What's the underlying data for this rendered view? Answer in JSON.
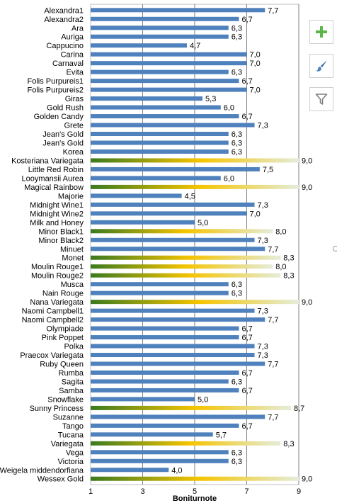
{
  "chart_data": {
    "type": "bar",
    "orientation": "horizontal",
    "xlabel": "Boniturnote",
    "xlim": [
      1,
      9
    ],
    "xticks": [
      "1",
      "3",
      "5",
      "7",
      "9"
    ],
    "grid": true,
    "colors": {
      "bar": "#4f81bd",
      "gradient_start": "#3a7a1e",
      "gradient_mid": "#f5c400",
      "gradient_end": "#e4edd9",
      "grid": "#7f7f7f"
    },
    "categories": [
      "Alexandra1",
      "Alexandra2",
      "Ara",
      "Auriga",
      "Cappucino",
      "Carina",
      "Carnaval",
      "Evita",
      "Folis Purpureis1",
      "Folis Purpureis2",
      "Giras",
      "Gold Rush",
      "Golden Candy",
      "Grete",
      "Jean's Gold",
      "Jean's Gold",
      "Korea",
      "Kosteriana Variegata",
      "Little Red Robin",
      "Looymansii Aurea",
      "Magical Rainbow",
      "Majorie",
      "Midnight Wine1",
      "Midnight Wine2",
      "Milk and Honey",
      "Minor Black1",
      "Minor Black2",
      "Minuet",
      "Monet",
      "Moulin Rouge1",
      "Moulin Rouge2",
      "Musca",
      "Nain Rouge",
      "Nana Variegata",
      "Naomi Campbell1",
      "Naomi Campbell2",
      "Olympiade",
      "Pink Poppet",
      "Polka",
      "Praecox Variegata",
      "Ruby Queen",
      "Rumba",
      "Sagita",
      "Samba",
      "Snowflake",
      "Sunny Princess",
      "Suzanne",
      "Tango",
      "Tucana",
      "Variegata",
      "Vega",
      "Victoria",
      "Weigela middendorfiana",
      "Wessex Gold"
    ],
    "values": [
      7.7,
      6.7,
      6.3,
      6.3,
      4.7,
      7.0,
      7.0,
      6.3,
      6.7,
      7.0,
      5.3,
      6.0,
      6.7,
      7.3,
      6.3,
      6.3,
      6.3,
      9.0,
      7.5,
      6.0,
      9.0,
      4.5,
      7.3,
      7.0,
      5.0,
      8.0,
      7.3,
      7.7,
      8.3,
      8.0,
      8.3,
      6.3,
      6.3,
      9.0,
      7.3,
      7.7,
      6.7,
      6.7,
      7.3,
      7.3,
      7.7,
      6.7,
      6.3,
      6.7,
      5.0,
      8.7,
      7.7,
      6.7,
      5.7,
      8.3,
      6.3,
      6.3,
      4.0,
      9.0
    ],
    "value_labels": [
      "7,7",
      "6,7",
      "6,3",
      "6,3",
      "4,7",
      "7,0",
      "7,0",
      "6,3",
      "6,7",
      "7,0",
      "5,3",
      "6,0",
      "6,7",
      "7,3",
      "6,3",
      "6,3",
      "6,3",
      "9,0",
      "7,5",
      "6,0",
      "9,0",
      "4,5",
      "7,3",
      "7,0",
      "5,0",
      "8,0",
      "7,3",
      "7,7",
      "8,3",
      "8,0",
      "8,3",
      "6,3",
      "6,3",
      "9,0",
      "7,3",
      "7,7",
      "6,7",
      "6,7",
      "7,3",
      "7,3",
      "7,7",
      "6,7",
      "6,3",
      "6,7",
      "5,0",
      "8,7",
      "7,7",
      "6,7",
      "5,7",
      "8,3",
      "6,3",
      "6,3",
      "4,0",
      "9,0"
    ],
    "highlighted": [
      "Kosteriana Variegata",
      "Magical Rainbow",
      "Minor Black1",
      "Monet",
      "Moulin Rouge1",
      "Moulin Rouge2",
      "Nana Variegata",
      "Sunny Princess",
      "Variegata",
      "Wessex Gold"
    ]
  },
  "toolbar": {
    "add_icon": "plus-icon",
    "brush_icon": "paintbrush-icon",
    "filter_icon": "filter-icon"
  }
}
